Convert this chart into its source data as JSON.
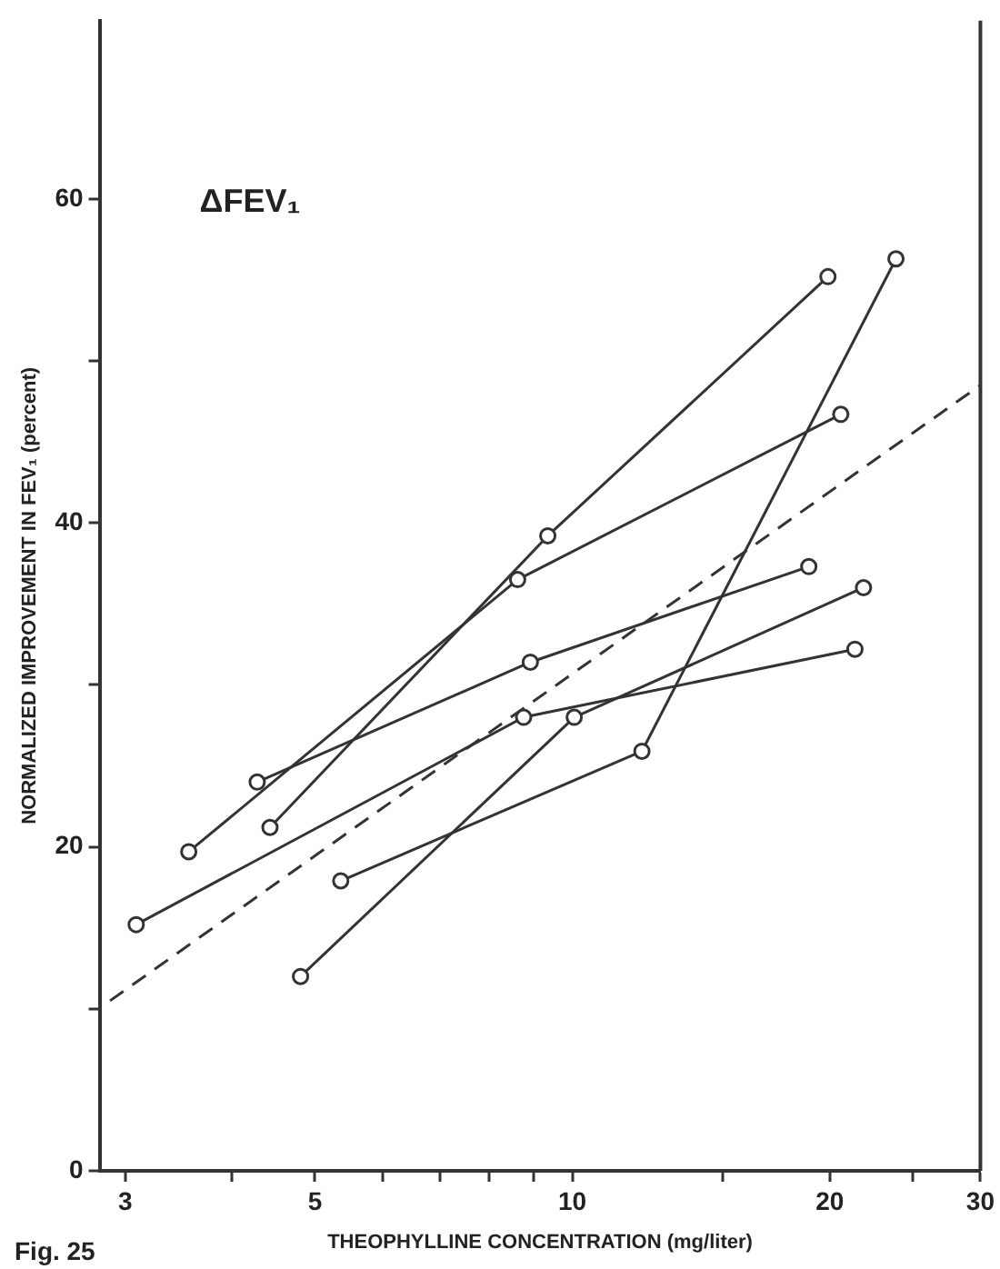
{
  "chart_data": {
    "type": "line",
    "title": "ΔFEV₁",
    "xlabel": "THEOPHYLLINE CONCENTRATION (mg/liter)",
    "ylabel": "NORMALIZED IMPROVEMENT IN FEV₁ (percent)",
    "annotations": [
      "Fig. 25"
    ],
    "log": "x",
    "grid": false,
    "legend": false,
    "marker": "circle",
    "line_style": "solid",
    "xlim": [
      2.8,
      30
    ],
    "xticks": [
      3,
      {
        "value": 4,
        "label": null
      },
      5,
      {
        "value": 6,
        "label": null
      },
      {
        "value": 7,
        "label": null
      },
      {
        "value": 8,
        "label": null
      },
      {
        "value": 9,
        "label": null
      },
      10,
      {
        "value": 15,
        "label": null
      },
      20,
      {
        "value": 25,
        "label": null
      },
      30
    ],
    "ylim": [
      0,
      71
    ],
    "yticks": [
      0,
      {
        "value": 10,
        "label": null
      },
      20,
      {
        "value": 30,
        "label": null
      },
      40,
      {
        "value": 50,
        "label": null
      },
      60
    ],
    "series": [
      {
        "color": "#333333",
        "x": [
          3.56,
          8.63,
          20.6
        ],
        "values": [
          19.7,
          36.5,
          46.7
        ]
      },
      {
        "color": "#333333",
        "x": [
          4.28,
          8.93,
          18.9
        ],
        "values": [
          24.0,
          31.4,
          37.3
        ]
      },
      {
        "color": "#333333",
        "x": [
          4.43,
          9.36,
          19.9
        ],
        "values": [
          21.2,
          39.2,
          55.2
        ]
      },
      {
        "color": "#333333",
        "x": [
          3.09,
          8.77,
          21.4
        ],
        "values": [
          15.2,
          28.0,
          32.2
        ]
      },
      {
        "color": "#333333",
        "x": [
          5.36,
          12.06,
          23.9
        ],
        "values": [
          17.9,
          25.9,
          56.3
        ]
      },
      {
        "color": "#333333",
        "x": [
          4.81,
          10.05,
          21.9
        ],
        "values": [
          12.0,
          28.0,
          36.0
        ]
      },
      {
        "type": "line",
        "color": "#333333",
        "marker": "none",
        "line_style": "dashed",
        "x": [
          2.88,
          30
        ],
        "values": [
          10.5,
          48.5
        ]
      }
    ]
  }
}
